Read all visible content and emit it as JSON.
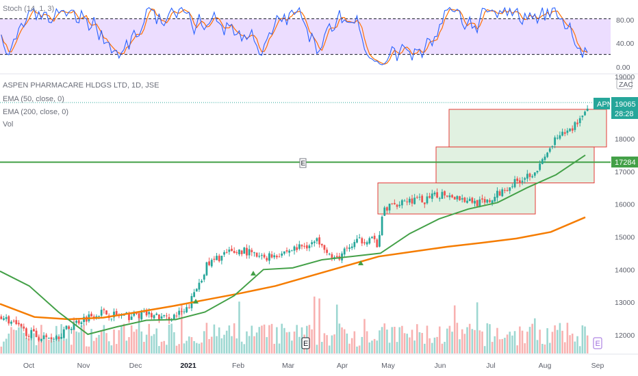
{
  "stoch_pane": {
    "label": "Stoch (14, 1, 3)",
    "scale_labels": [
      "80.00",
      "40.00",
      "0.00"
    ],
    "band": [
      20,
      80
    ],
    "colors": {
      "k": "#2962ff",
      "d": "#ff6d00",
      "band_fill": "#e9d7ff"
    }
  },
  "price_pane": {
    "symbol_line": "ASPEN PHARMACARE HLDGS LTD, 1D, JSE",
    "indicators": [
      "EMA (50, close, 0)",
      "EMA (200, close, 0)",
      "Vol"
    ],
    "currency_badge": "ZAC",
    "top_scale_label": "19000",
    "price_ticks": [
      "18000",
      "17000",
      "16000",
      "15000",
      "14000",
      "13000",
      "12000"
    ],
    "ticker_badge": "APN",
    "last_price": "19065",
    "countdown": "28:28",
    "hline_price": "17284",
    "earnings_marker": "E",
    "x_labels": [
      "Oct",
      "Nov",
      "Dec",
      "2021",
      "Feb",
      "Mar",
      "Apr",
      "May",
      "Jun",
      "Jul",
      "Aug",
      "Sep"
    ],
    "colors": {
      "up": "#26a69a",
      "down": "#ef5350",
      "ema50": "#43a047",
      "ema200": "#f57c00",
      "hline": "#43a047",
      "box_fill": "#c8e6c9",
      "box_border": "#e53935",
      "ticker_badge_bg": "#26a69a"
    }
  },
  "chart_data": {
    "type": "candlestick",
    "price_range": [
      11500,
      19300
    ],
    "log_scale": false,
    "grid": false,
    "ema50_values": [
      13950,
      13500,
      12700,
      12020,
      12250,
      12450,
      12470,
      12700,
      13200,
      14000,
      14050,
      14300,
      14400,
      14500,
      15100,
      15550,
      15850,
      16050,
      16500,
      16900,
      17500
    ],
    "ema200_values": [
      12950,
      12550,
      12480,
      12530,
      12700,
      12880,
      13080,
      13280,
      13500,
      13800,
      14100,
      14400,
      14550,
      14700,
      14820,
      14950,
      15150,
      15600
    ],
    "horizontal_line": 17284,
    "rectangles_price_bounds": [
      {
        "low": 15700,
        "high": 16650
      },
      {
        "low": 16650,
        "high": 17750
      },
      {
        "low": 17750,
        "high": 18900
      }
    ],
    "last_close": 19065
  }
}
